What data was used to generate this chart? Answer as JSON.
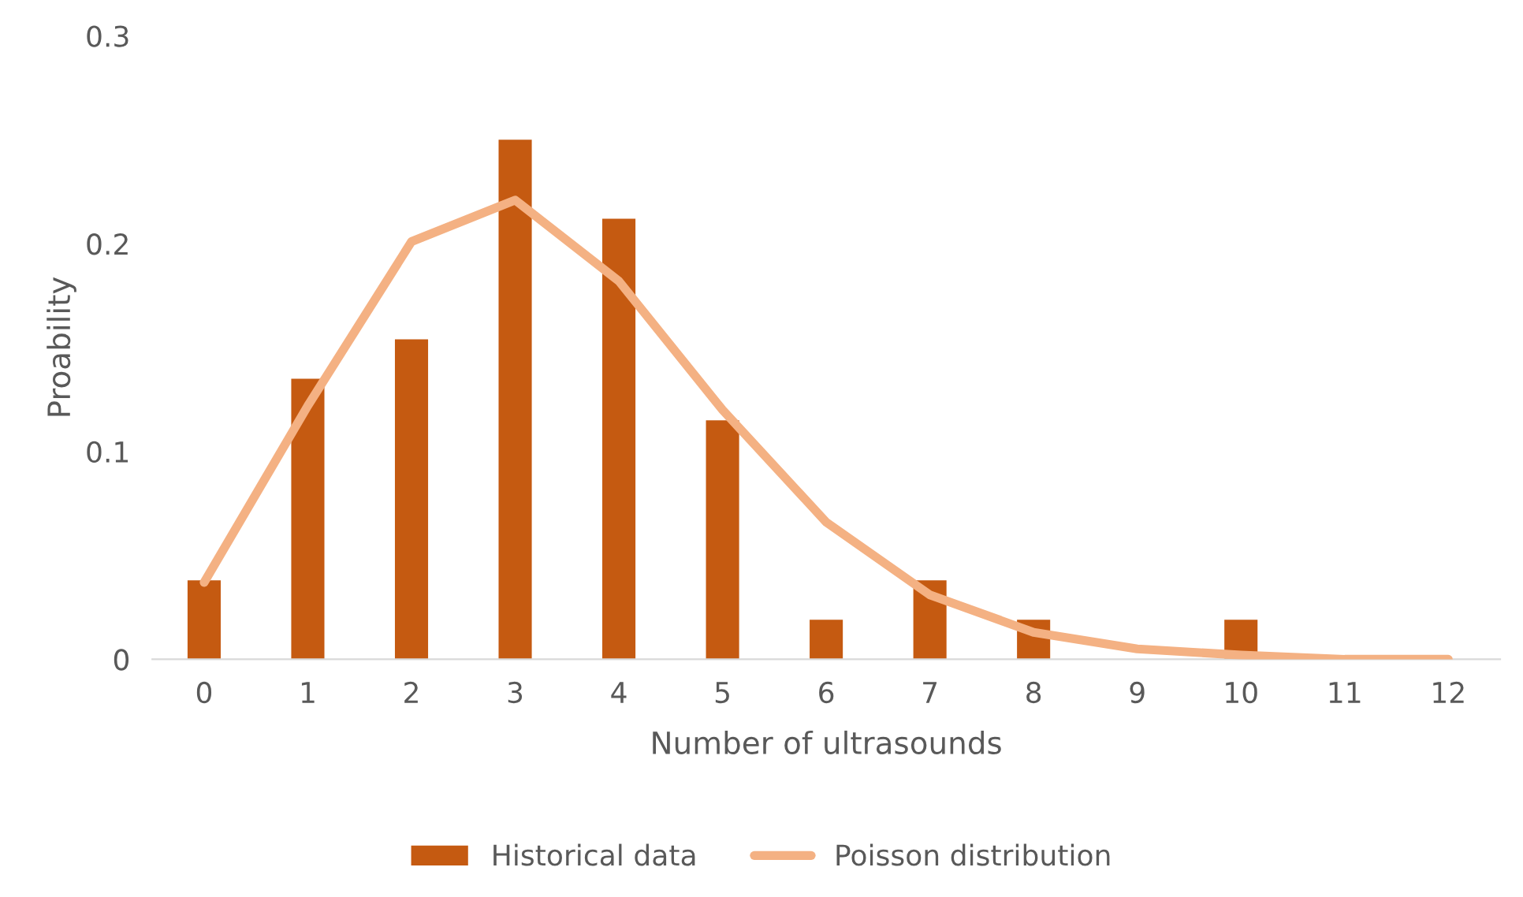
{
  "chart_data": {
    "type": "bar",
    "xlabel": "Number of ultrasounds",
    "ylabel": "Proability",
    "categories": [
      "0",
      "1",
      "2",
      "3",
      "4",
      "5",
      "6",
      "7",
      "8",
      "9",
      "10",
      "11",
      "12"
    ],
    "series": [
      {
        "name": "Historical data",
        "color": "#c55a11",
        "values": [
          0.038,
          0.135,
          0.154,
          0.25,
          0.212,
          0.115,
          0.019,
          0.038,
          0.019,
          0,
          0.019,
          0,
          0
        ]
      },
      {
        "name": "Poisson distribution",
        "type": "line",
        "color": "#f4b183",
        "values": [
          0.037,
          0.122,
          0.201,
          0.221,
          0.182,
          0.12,
          0.066,
          0.031,
          0.013,
          0.005,
          0.002,
          0,
          0
        ]
      }
    ],
    "ylim": [
      0,
      0.3
    ],
    "yticks": [
      0,
      0.1,
      0.2,
      0.3
    ],
    "grid": false,
    "legend": "bottom",
    "marker": "none",
    "line_style": "solid"
  }
}
